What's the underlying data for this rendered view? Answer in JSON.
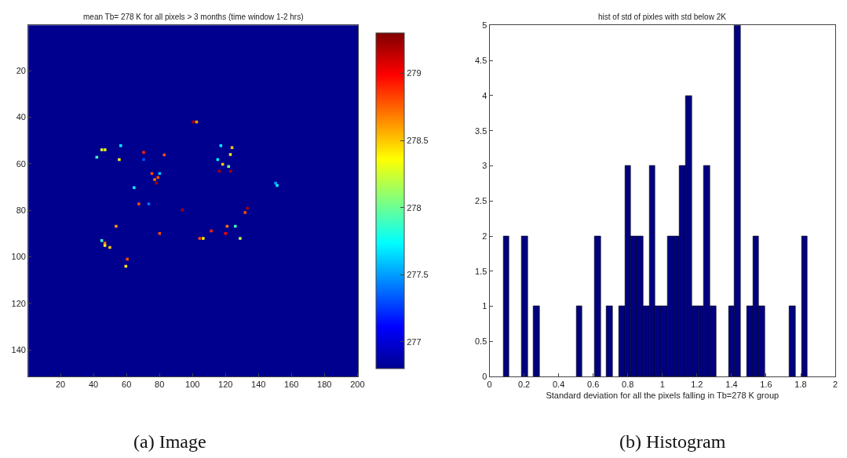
{
  "chart_data": [
    {
      "type": "scatter",
      "title": "mean Tb= 278 K for all pixels > 3 months (time window 1-2 hrs)",
      "marker": "square",
      "x": [
        100.5,
        102.5,
        45,
        47,
        56.5,
        42,
        55.6,
        70.4,
        70.4,
        82.9,
        75.4,
        80.1,
        77.1,
        79.1,
        78.2,
        64.6,
        117.2,
        124,
        123,
        115.3,
        118.3,
        121.9,
        116.3,
        123.1,
        150.4,
        151.3,
        67.5,
        73.5,
        93.8,
        133.3,
        131.9,
        53.7,
        80.1,
        121,
        126,
        111.4,
        120,
        104.4,
        106.5,
        128.9,
        45,
        46.9,
        46.9,
        49.9,
        60.5,
        59.6
      ],
      "values": [
        42,
        42,
        54,
        54,
        52.2,
        57.2,
        58.2,
        55.1,
        58.2,
        56.2,
        64.2,
        64.2,
        66.8,
        65.9,
        68.3,
        70.3,
        52.2,
        53.1,
        56,
        58.2,
        60.2,
        61.2,
        63.2,
        63.2,
        68.3,
        69.3,
        77.3,
        77.3,
        79.9,
        79.1,
        81,
        86.9,
        90,
        86.9,
        86.9,
        88.9,
        90,
        92.1,
        92.1,
        92.1,
        93,
        94.1,
        95.1,
        96,
        101,
        104.1
      ],
      "cvalues": [
        279.2,
        278.6,
        278.3,
        278.3,
        277.7,
        277.9,
        278.4,
        278.9,
        277.3,
        278.8,
        278.8,
        277.6,
        278.7,
        278.8,
        279.2,
        277.7,
        277.7,
        278.5,
        278.4,
        277.7,
        278.5,
        278.0,
        279.2,
        279.2,
        277.5,
        277.7,
        278.8,
        277.4,
        279.2,
        279.2,
        278.8,
        278.6,
        278.8,
        278.7,
        277.9,
        278.9,
        279.0,
        278.8,
        278.4,
        278.2,
        277.9,
        278.7,
        278.4,
        278.5,
        278.8,
        278.4
      ],
      "clim": [
        276.8,
        279.3
      ],
      "cticks": [
        277,
        277.5,
        278,
        278.5,
        279
      ],
      "xlim": [
        0.5,
        200.5
      ],
      "ylim": [
        151.5,
        0.5
      ],
      "xticks": [
        20,
        40,
        60,
        80,
        100,
        120,
        140,
        160,
        180,
        200
      ],
      "yticks": [
        20,
        40,
        60,
        80,
        100,
        120,
        140
      ],
      "bands": [
        {
          "axis": "x",
          "from": 0.5,
          "to": 200.5,
          "color": "#00008f"
        }
      ],
      "annotations": [
        "(a) Image"
      ]
    },
    {
      "type": "histogram",
      "title": "hist of std of pixles with std below 2K",
      "xlabel": "Standard deviation for all the pixels falling in Tb=278 K group",
      "color": "#000080",
      "bins": [
        0.08,
        0.1152,
        0.1504,
        0.1856,
        0.2208,
        0.256,
        0.2912,
        0.3264,
        0.3616,
        0.3968,
        0.432,
        0.4672,
        0.5024,
        0.5376,
        0.5728,
        0.608,
        0.6432,
        0.6784,
        0.7136,
        0.7488,
        0.784,
        0.8192,
        0.8544,
        0.8896,
        0.9248,
        0.96,
        0.9952,
        1.0304,
        1.0656,
        1.1008,
        1.136,
        1.1712,
        1.2064,
        1.2416,
        1.2768,
        1.312,
        1.3472,
        1.3824,
        1.4176,
        1.4528,
        1.488,
        1.5232,
        1.5584,
        1.5936,
        1.6288,
        1.664,
        1.6992,
        1.7344,
        1.7696,
        1.8048,
        1.84
      ],
      "values": [
        2,
        0,
        0,
        2,
        0,
        1,
        0,
        0,
        0,
        0,
        0,
        0,
        1,
        0,
        0,
        2,
        0,
        1,
        0,
        1,
        3,
        2,
        2,
        1,
        3,
        1,
        1,
        2,
        2,
        3,
        4,
        1,
        1,
        3,
        1,
        0,
        0,
        1,
        5,
        0,
        1,
        2,
        1,
        0,
        0,
        0,
        0,
        1,
        0,
        2
      ],
      "xlim": [
        0,
        2
      ],
      "ylim": [
        0,
        5
      ],
      "xticks": [
        0,
        0.2,
        0.4,
        0.6,
        0.8,
        1,
        1.2,
        1.4,
        1.6,
        1.8,
        2
      ],
      "yticks": [
        0,
        0.5,
        1,
        1.5,
        2,
        2.5,
        3,
        3.5,
        4,
        4.5,
        5
      ],
      "annotations": [
        "(b) Histogram"
      ]
    }
  ]
}
